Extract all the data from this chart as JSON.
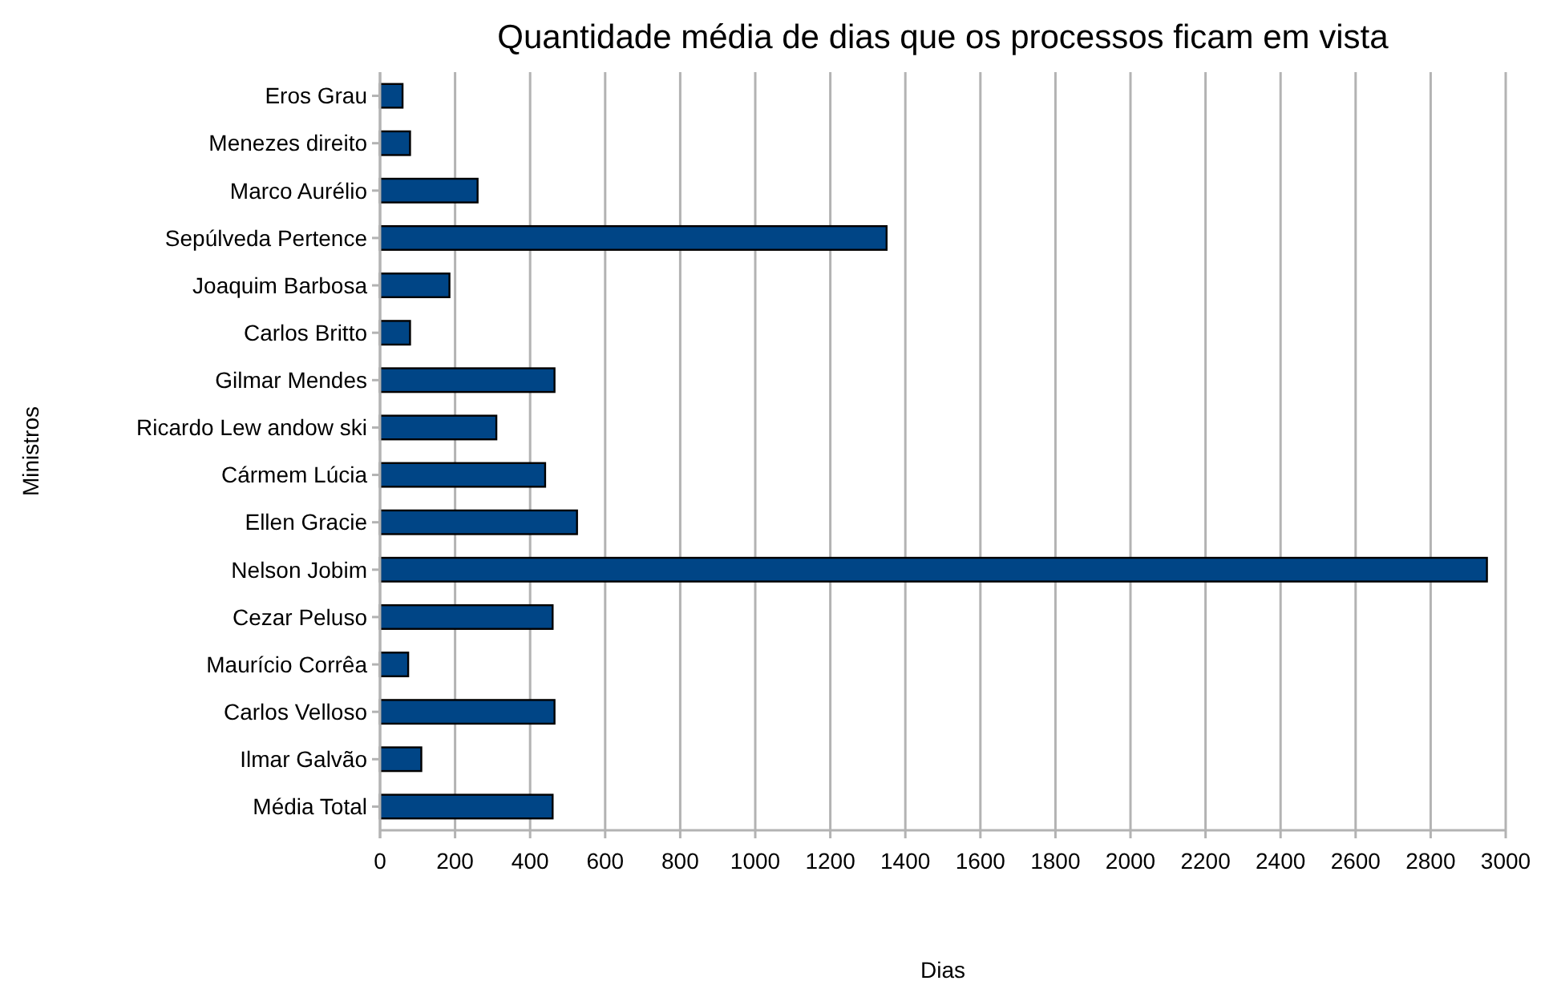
{
  "chart_data": {
    "type": "bar",
    "orientation": "horizontal",
    "title": "Quantidade média de dias que os processos ficam em vista",
    "xlabel": "Dias",
    "ylabel": "Ministros",
    "categories": [
      "Eros Grau",
      "Menezes direito",
      "Marco Aurélio",
      "Sepúlveda Pertence",
      "Joaquim Barbosa",
      "Carlos Britto",
      "Gilmar Mendes",
      "Ricardo Lew andow ski",
      "Cármem Lúcia",
      "Ellen Gracie",
      "Nelson Jobim",
      "Cezar Peluso",
      "Maurício Corrêa",
      "Carlos Velloso",
      "Ilmar Galvão",
      "Média Total"
    ],
    "values": [
      60,
      80,
      260,
      1350,
      185,
      80,
      465,
      310,
      440,
      525,
      2950,
      460,
      75,
      465,
      110,
      460
    ],
    "color": "#004586",
    "xlim": [
      0,
      3000
    ],
    "xticks": [
      0,
      200,
      400,
      600,
      800,
      1000,
      1200,
      1400,
      1600,
      1800,
      2000,
      2200,
      2400,
      2600,
      2800,
      3000
    ],
    "grid": "x"
  }
}
